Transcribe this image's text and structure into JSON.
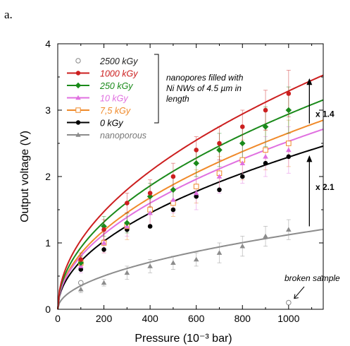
{
  "panel_label": "a.",
  "chart_data": {
    "type": "scatter",
    "xlabel": "Pressure (10⁻³ bar)",
    "ylabel": "Output voltage (V)",
    "xlim": [
      0,
      1150
    ],
    "ylim": [
      0,
      4
    ],
    "xticks": [
      0,
      200,
      400,
      600,
      800,
      1000
    ],
    "yticks": [
      0,
      1,
      2,
      3,
      4
    ],
    "grid": false,
    "legend_position": "top-left",
    "legend_bracket_note": "nanopores filled with Ni NWs of 4.5 µm in length",
    "annotations": [
      {
        "text": "x 1.4"
      },
      {
        "text": "x 2.1"
      },
      {
        "text": "broken sample"
      }
    ],
    "series": [
      {
        "name": "2500 kGy",
        "color": "#888888",
        "marker": "open-circle",
        "fit": false,
        "x": [
          100,
          1000
        ],
        "y": [
          0.4,
          0.1
        ],
        "err": [
          0,
          0
        ]
      },
      {
        "name": "1000 kGy",
        "color": "#cc1f1f",
        "marker": "circle",
        "fit": true,
        "fit_k": 0.104,
        "x": [
          100,
          200,
          300,
          400,
          500,
          600,
          700,
          800,
          900,
          1000
        ],
        "y": [
          0.75,
          1.2,
          1.6,
          1.75,
          2.0,
          2.4,
          2.5,
          2.75,
          3.0,
          3.25
        ],
        "err": [
          0.1,
          0.15,
          0.15,
          0.2,
          0.2,
          0.2,
          0.25,
          0.25,
          0.3,
          0.35
        ]
      },
      {
        "name": "250 kGy",
        "color": "#1a8a1a",
        "marker": "diamond",
        "fit": true,
        "fit_k": 0.093,
        "x": [
          100,
          200,
          300,
          400,
          500,
          600,
          700,
          800,
          900,
          1000
        ],
        "y": [
          0.7,
          1.25,
          1.3,
          1.7,
          1.8,
          2.2,
          2.4,
          2.5,
          2.75,
          3.0
        ],
        "err": [
          0.1,
          0.15,
          0.15,
          0.2,
          0.2,
          0.2,
          0.25,
          0.25,
          0.3,
          0.35
        ]
      },
      {
        "name": "10 kGy",
        "color": "#e070e0",
        "marker": "triangle",
        "fit": true,
        "fit_k": 0.08,
        "x": [
          100,
          200,
          300,
          400,
          500,
          600,
          700,
          800,
          900,
          1000
        ],
        "y": [
          0.65,
          1.0,
          1.25,
          1.45,
          1.65,
          1.75,
          2.0,
          2.2,
          2.3,
          2.4
        ],
        "err": [
          0.1,
          0.15,
          0.15,
          0.2,
          0.2,
          0.25,
          0.25,
          0.3,
          0.3,
          0.35
        ]
      },
      {
        "name": "7,5 kGy",
        "color": "#f08a2a",
        "marker": "open-square",
        "fit": true,
        "fit_k": 0.084,
        "x": [
          100,
          200,
          300,
          400,
          500,
          600,
          700,
          800,
          900,
          1000
        ],
        "y": [
          0.7,
          1.0,
          1.25,
          1.5,
          1.6,
          1.85,
          2.05,
          2.25,
          2.4,
          2.5
        ],
        "err": [
          0.1,
          0.15,
          0.2,
          0.25,
          0.2,
          0.25,
          0.25,
          0.3,
          0.3,
          0.35
        ]
      },
      {
        "name": "0 kGy",
        "color": "#000000",
        "marker": "circle",
        "fit": true,
        "fit_k": 0.0725,
        "x": [
          100,
          200,
          300,
          400,
          500,
          600,
          700,
          800,
          900,
          1000
        ],
        "y": [
          0.6,
          0.9,
          1.2,
          1.25,
          1.5,
          1.7,
          1.8,
          2.0,
          2.2,
          2.3
        ],
        "err": [
          0,
          0,
          0,
          0,
          0,
          0,
          0,
          0,
          0,
          0
        ]
      },
      {
        "name": "nanoporous",
        "color": "#8c8c8c",
        "marker": "triangle",
        "fit": true,
        "fit_k": 0.0355,
        "x": [
          100,
          200,
          300,
          400,
          500,
          600,
          700,
          800,
          900,
          1000
        ],
        "y": [
          0.3,
          0.4,
          0.55,
          0.65,
          0.7,
          0.75,
          0.85,
          0.95,
          1.1,
          1.2
        ],
        "err": [
          0.05,
          0.05,
          0.1,
          0.1,
          0.1,
          0.1,
          0.15,
          0.15,
          0.15,
          0.15
        ]
      }
    ]
  }
}
